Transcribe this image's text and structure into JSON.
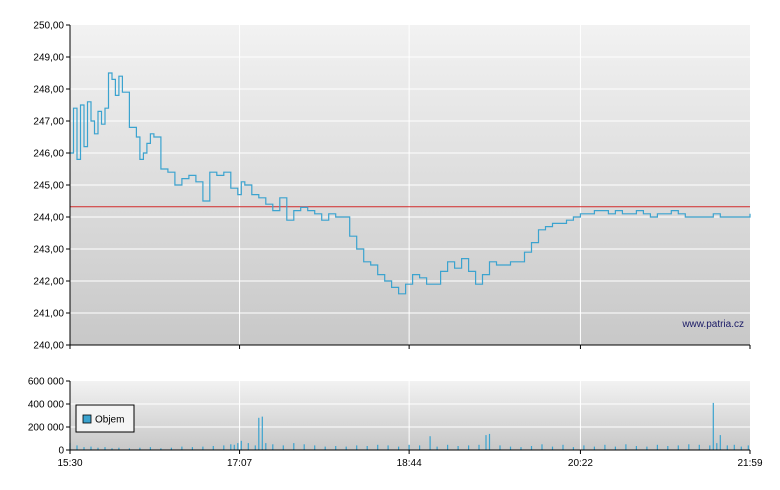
{
  "watermark": "www.patria.cz",
  "colors": {
    "price_line": "#3ba3cf",
    "reference_line": "#d22a2a",
    "volume_bars": "#3ba3cf",
    "grid": "#ffffff",
    "plot_bg_top": "#f2f2f2",
    "plot_bg_bottom": "#c8c8c8",
    "axis": "#000000"
  },
  "chart_data": [
    {
      "type": "line",
      "title": "",
      "xlabel": "",
      "ylabel": "",
      "ylim": [
        240,
        250
      ],
      "y_ticks": [
        "240,00",
        "241,00",
        "242,00",
        "243,00",
        "244,00",
        "245,00",
        "246,00",
        "247,00",
        "248,00",
        "249,00",
        "250,00"
      ],
      "xlim": [
        "15:30",
        "21:59"
      ],
      "grid": true,
      "reference_value": 244.32,
      "series": [
        {
          "x": [
            "15:30",
            "15:32",
            "15:34",
            "15:36",
            "15:38",
            "15:40",
            "15:42",
            "15:44",
            "15:46",
            "15:48",
            "15:50",
            "15:52",
            "15:54",
            "15:56",
            "15:58",
            "16:00",
            "16:04",
            "16:08",
            "16:10",
            "16:12",
            "16:14",
            "16:16",
            "16:18",
            "16:22",
            "16:26",
            "16:30",
            "16:34",
            "16:38",
            "16:42",
            "16:46",
            "16:50",
            "16:54",
            "16:58",
            "17:02",
            "17:06",
            "17:08",
            "17:10",
            "17:14",
            "17:18",
            "17:22",
            "17:26",
            "17:30",
            "17:34",
            "17:38",
            "17:42",
            "17:46",
            "17:50",
            "17:54",
            "17:58",
            "18:02",
            "18:06",
            "18:10",
            "18:14",
            "18:18",
            "18:22",
            "18:26",
            "18:30",
            "18:34",
            "18:38",
            "18:42",
            "18:46",
            "18:50",
            "18:54",
            "18:58",
            "19:02",
            "19:06",
            "19:10",
            "19:14",
            "19:18",
            "19:22",
            "19:26",
            "19:30",
            "19:34",
            "19:38",
            "19:42",
            "19:46",
            "19:50",
            "19:54",
            "19:58",
            "20:02",
            "20:06",
            "20:10",
            "20:14",
            "20:18",
            "20:22",
            "20:26",
            "20:30",
            "20:34",
            "20:38",
            "20:42",
            "20:46",
            "20:50",
            "20:54",
            "20:58",
            "21:02",
            "21:06",
            "21:10",
            "21:14",
            "21:18",
            "21:22",
            "21:26",
            "21:30",
            "21:34",
            "21:38",
            "21:42",
            "21:46",
            "21:50",
            "21:54",
            "21:58",
            "21:59"
          ],
          "y": [
            246.0,
            247.4,
            245.8,
            247.5,
            246.2,
            247.6,
            247.0,
            246.6,
            247.3,
            246.9,
            247.4,
            248.5,
            248.3,
            247.8,
            248.4,
            247.9,
            246.8,
            246.5,
            245.8,
            246.0,
            246.3,
            246.6,
            246.5,
            245.5,
            245.4,
            245.0,
            245.2,
            245.3,
            245.1,
            244.5,
            245.4,
            245.3,
            245.4,
            244.9,
            244.7,
            245.1,
            245.0,
            244.7,
            244.6,
            244.4,
            244.2,
            244.6,
            243.9,
            244.2,
            244.3,
            244.2,
            244.1,
            243.9,
            244.1,
            244.0,
            244.0,
            243.4,
            243.0,
            242.6,
            242.5,
            242.2,
            242.0,
            241.8,
            241.6,
            241.9,
            242.2,
            242.1,
            241.9,
            241.9,
            242.3,
            242.6,
            242.4,
            242.7,
            242.3,
            241.9,
            242.2,
            242.6,
            242.5,
            242.5,
            242.6,
            242.6,
            242.9,
            243.2,
            243.6,
            243.7,
            243.8,
            243.8,
            243.9,
            244.0,
            244.1,
            244.1,
            244.2,
            244.2,
            244.1,
            244.2,
            244.1,
            244.1,
            244.2,
            244.1,
            244.0,
            244.1,
            244.1,
            244.2,
            244.1,
            244.0,
            244.0,
            244.0,
            244.0,
            244.1,
            244.0,
            244.0,
            244.0,
            244.0,
            244.0,
            244.1
          ]
        }
      ]
    },
    {
      "type": "bar",
      "title": "",
      "xlabel": "",
      "ylabel": "",
      "ylim": [
        0,
        600000
      ],
      "y_ticks": [
        "0",
        "200 000",
        "400 000",
        "600 000"
      ],
      "x_ticks": [
        "15:30",
        "17:07",
        "18:44",
        "20:22",
        "21:59"
      ],
      "xlim": [
        "15:30",
        "21:59"
      ],
      "legend": "Objem",
      "legend_position": "left",
      "grid": true,
      "series": [
        {
          "name": "Objem",
          "x": [
            "15:30",
            "15:34",
            "15:38",
            "15:42",
            "15:46",
            "15:50",
            "15:54",
            "15:58",
            "16:04",
            "16:10",
            "16:16",
            "16:22",
            "16:28",
            "16:34",
            "16:40",
            "16:46",
            "16:52",
            "16:58",
            "17:02",
            "17:04",
            "17:06",
            "17:08",
            "17:12",
            "17:16",
            "17:18",
            "17:20",
            "17:22",
            "17:26",
            "17:32",
            "17:38",
            "17:44",
            "17:50",
            "17:56",
            "18:02",
            "18:08",
            "18:14",
            "18:20",
            "18:26",
            "18:32",
            "18:38",
            "18:44",
            "18:50",
            "18:56",
            "19:00",
            "19:06",
            "19:12",
            "19:18",
            "19:24",
            "19:28",
            "19:30",
            "19:36",
            "19:42",
            "19:48",
            "19:54",
            "20:00",
            "20:06",
            "20:12",
            "20:18",
            "20:24",
            "20:30",
            "20:36",
            "20:42",
            "20:48",
            "20:54",
            "21:00",
            "21:06",
            "21:12",
            "21:18",
            "21:24",
            "21:30",
            "21:36",
            "21:38",
            "21:40",
            "21:42",
            "21:46",
            "21:50",
            "21:54",
            "21:58"
          ],
          "y": [
            60000,
            40000,
            25000,
            30000,
            20000,
            25000,
            15000,
            20000,
            15000,
            20000,
            25000,
            15000,
            20000,
            30000,
            25000,
            30000,
            35000,
            40000,
            50000,
            45000,
            60000,
            80000,
            60000,
            40000,
            280000,
            290000,
            60000,
            50000,
            40000,
            60000,
            50000,
            40000,
            30000,
            35000,
            30000,
            40000,
            35000,
            45000,
            40000,
            30000,
            45000,
            40000,
            120000,
            30000,
            45000,
            35000,
            40000,
            45000,
            130000,
            140000,
            40000,
            30000,
            25000,
            35000,
            50000,
            30000,
            45000,
            25000,
            40000,
            30000,
            45000,
            30000,
            50000,
            35000,
            30000,
            45000,
            35000,
            40000,
            50000,
            45000,
            40000,
            410000,
            60000,
            130000,
            40000,
            45000,
            30000,
            40000
          ]
        }
      ]
    }
  ]
}
